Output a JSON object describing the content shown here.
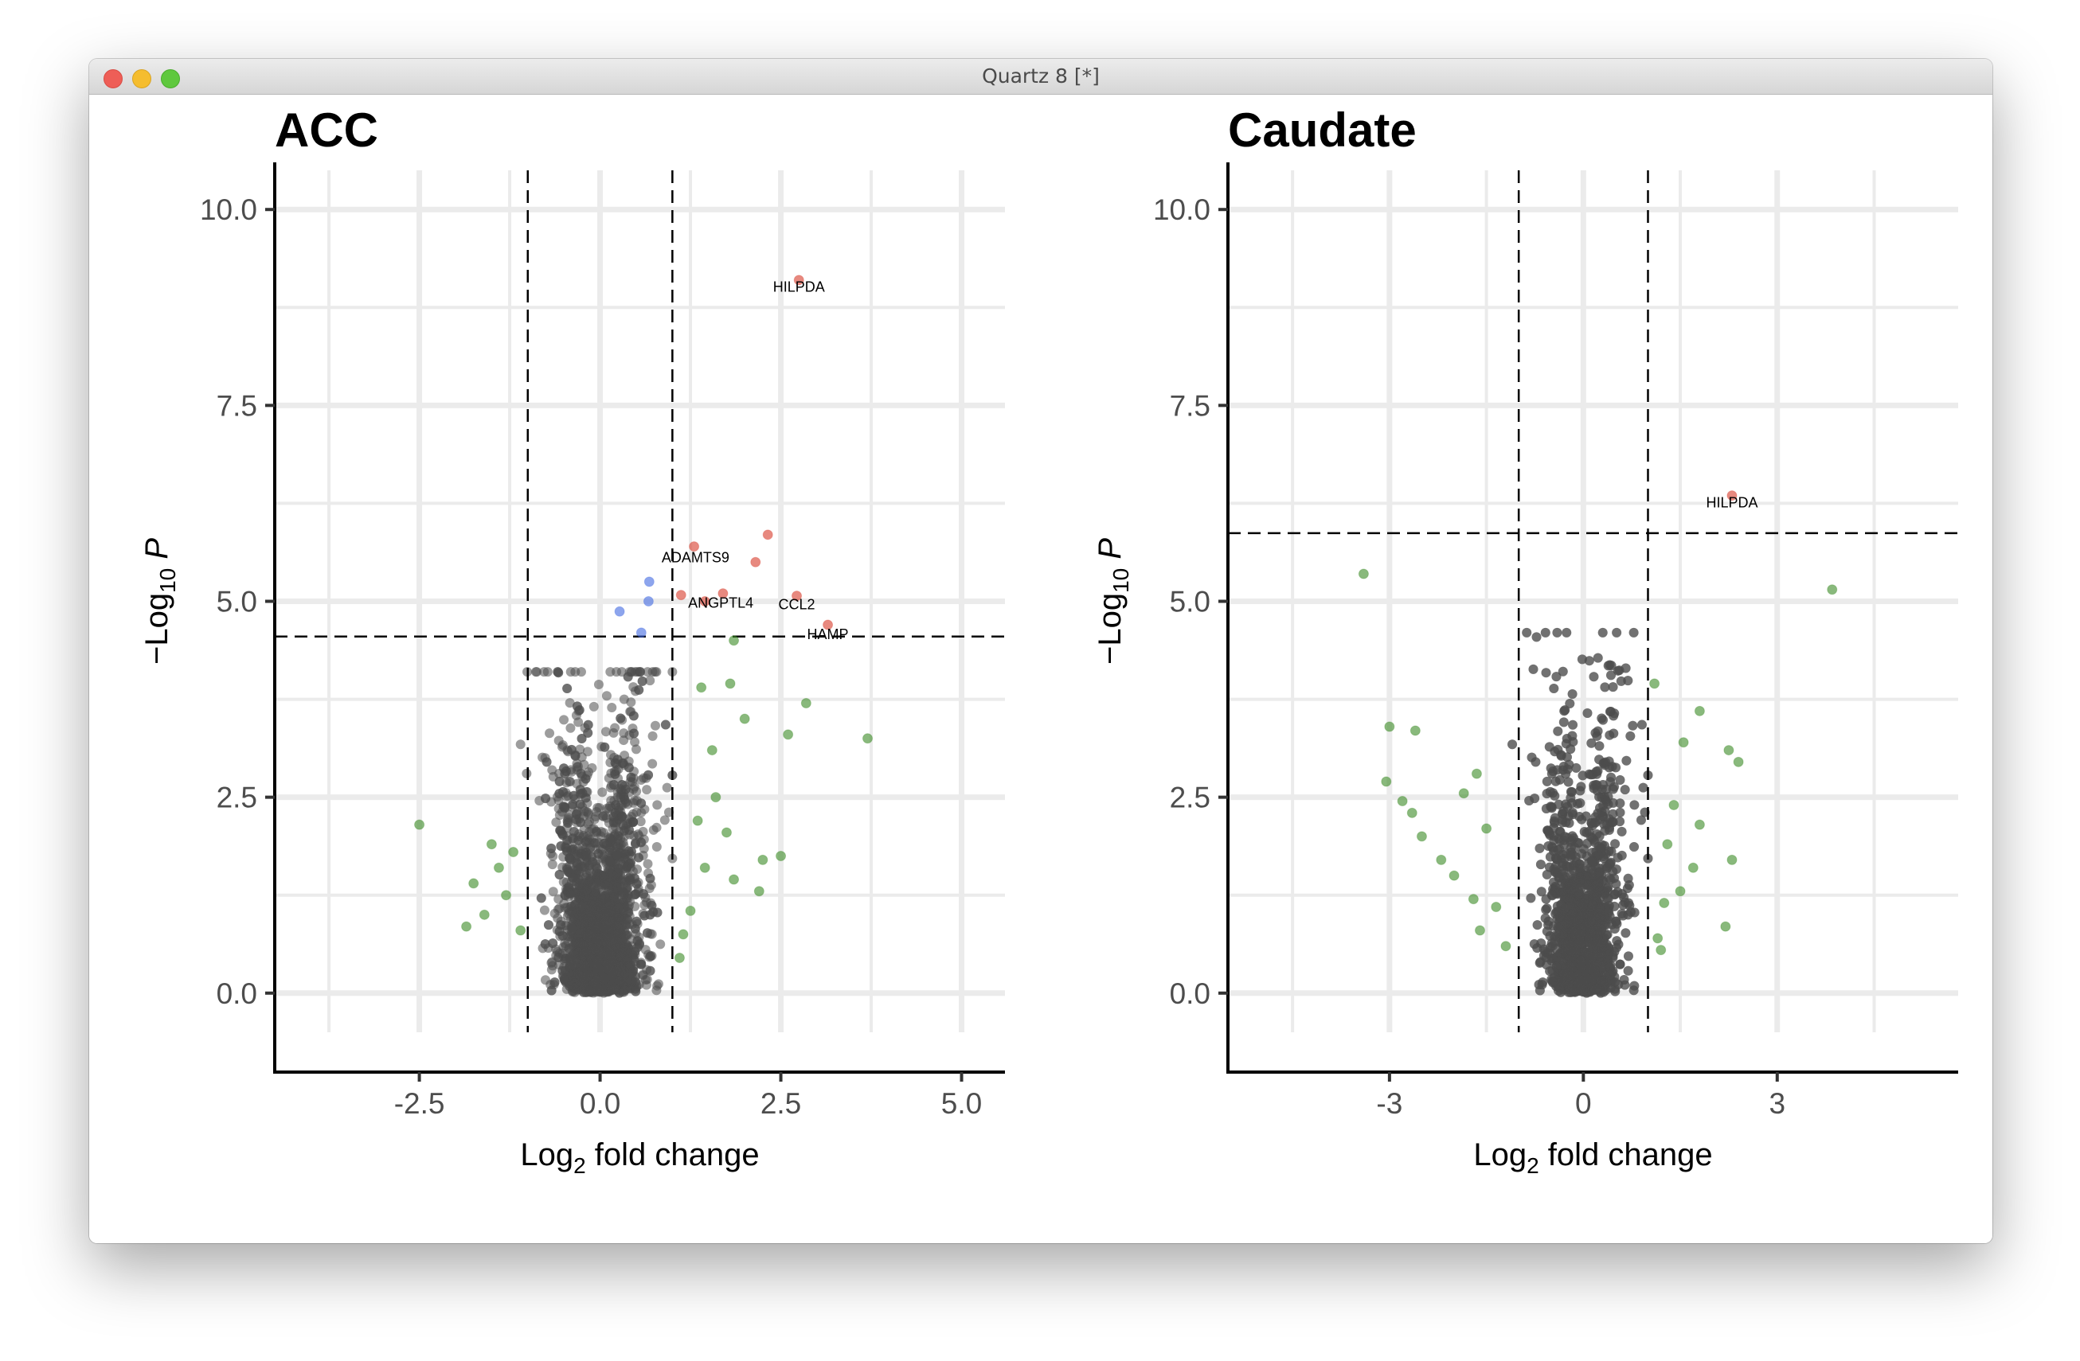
{
  "window": {
    "title": "Quartz 8 [*]"
  },
  "chart_data": [
    {
      "type": "scatter",
      "title": "ACC",
      "xlabel": "Log2 fold change",
      "ylabel": "−Log10 P",
      "xlim": [
        -4.5,
        5.6
      ],
      "ylim": [
        -0.5,
        10.5
      ],
      "x_ticks": [
        -2.5,
        0.0,
        2.5,
        5.0
      ],
      "x_tick_labels": [
        "-2.5",
        "0.0",
        "2.5",
        "5.0"
      ],
      "y_ticks": [
        0,
        2.5,
        5,
        7.5,
        10
      ],
      "y_tick_labels": [
        "0.0",
        "2.5",
        "5.0",
        "7.5",
        "10.0"
      ],
      "grid": true,
      "vlines": [
        -1,
        1
      ],
      "hline": 4.55,
      "colors": {
        "ns": "#4d4d4d",
        "log2fc": "#3a8a25",
        "p": "#4169e1",
        "both": "#d73a2a"
      },
      "dense_cloud": {
        "description": "thousands of non-significant genes",
        "x_range": [
          -1.1,
          1.0
        ],
        "y_range": [
          0,
          4.1
        ]
      },
      "points": [
        {
          "x": 2.75,
          "y": 9.1,
          "group": "both"
        },
        {
          "x": 2.32,
          "y": 5.85,
          "group": "both"
        },
        {
          "x": 1.3,
          "y": 5.7,
          "group": "both"
        },
        {
          "x": 2.15,
          "y": 5.5,
          "group": "both"
        },
        {
          "x": 1.12,
          "y": 5.08,
          "group": "both"
        },
        {
          "x": 1.7,
          "y": 5.1,
          "group": "both"
        },
        {
          "x": 2.72,
          "y": 5.07,
          "group": "both"
        },
        {
          "x": 1.45,
          "y": 5.0,
          "group": "both"
        },
        {
          "x": 3.15,
          "y": 4.7,
          "group": "both"
        },
        {
          "x": 0.68,
          "y": 5.25,
          "group": "p"
        },
        {
          "x": 0.27,
          "y": 4.87,
          "group": "p"
        },
        {
          "x": 0.67,
          "y": 5.0,
          "group": "p"
        },
        {
          "x": 0.57,
          "y": 4.6,
          "group": "p"
        },
        {
          "x": -2.5,
          "y": 2.15,
          "group": "log2fc"
        },
        {
          "x": -1.85,
          "y": 0.85,
          "group": "log2fc"
        },
        {
          "x": -1.6,
          "y": 1.0,
          "group": "log2fc"
        },
        {
          "x": -1.4,
          "y": 1.6,
          "group": "log2fc"
        },
        {
          "x": -1.3,
          "y": 1.25,
          "group": "log2fc"
        },
        {
          "x": -1.2,
          "y": 1.8,
          "group": "log2fc"
        },
        {
          "x": -1.5,
          "y": 1.9,
          "group": "log2fc"
        },
        {
          "x": -1.75,
          "y": 1.4,
          "group": "log2fc"
        },
        {
          "x": -1.1,
          "y": 0.8,
          "group": "log2fc"
        },
        {
          "x": 3.7,
          "y": 3.25,
          "group": "log2fc"
        },
        {
          "x": 2.85,
          "y": 3.7,
          "group": "log2fc"
        },
        {
          "x": 2.6,
          "y": 3.3,
          "group": "log2fc"
        },
        {
          "x": 2.0,
          "y": 3.5,
          "group": "log2fc"
        },
        {
          "x": 1.8,
          "y": 3.95,
          "group": "log2fc"
        },
        {
          "x": 1.85,
          "y": 4.5,
          "group": "log2fc"
        },
        {
          "x": 1.4,
          "y": 3.9,
          "group": "log2fc"
        },
        {
          "x": 2.5,
          "y": 1.75,
          "group": "log2fc"
        },
        {
          "x": 2.25,
          "y": 1.7,
          "group": "log2fc"
        },
        {
          "x": 2.2,
          "y": 1.3,
          "group": "log2fc"
        },
        {
          "x": 1.85,
          "y": 1.45,
          "group": "log2fc"
        },
        {
          "x": 1.75,
          "y": 2.05,
          "group": "log2fc"
        },
        {
          "x": 1.6,
          "y": 2.5,
          "group": "log2fc"
        },
        {
          "x": 1.55,
          "y": 3.1,
          "group": "log2fc"
        },
        {
          "x": 1.35,
          "y": 2.2,
          "group": "log2fc"
        },
        {
          "x": 1.25,
          "y": 1.05,
          "group": "log2fc"
        },
        {
          "x": 1.15,
          "y": 0.75,
          "group": "log2fc"
        },
        {
          "x": 1.45,
          "y": 1.6,
          "group": "log2fc"
        },
        {
          "x": 1.1,
          "y": 0.45,
          "group": "log2fc"
        }
      ],
      "labels": [
        {
          "text": "HILPDA",
          "x": 2.75,
          "y": 8.95
        },
        {
          "text": "ADAMTS9",
          "x": 1.32,
          "y": 5.5
        },
        {
          "text": "ANGPTL4",
          "x": 1.67,
          "y": 4.92
        },
        {
          "text": "CCL2",
          "x": 2.72,
          "y": 4.9
        },
        {
          "text": "HAMP",
          "x": 3.15,
          "y": 4.52
        }
      ]
    },
    {
      "type": "scatter",
      "title": "Caudate",
      "xlabel": "Log2 fold change",
      "ylabel": "−Log10 P",
      "xlim": [
        -5.5,
        5.8
      ],
      "ylim": [
        -0.5,
        10.5
      ],
      "x_ticks": [
        -3,
        0,
        3
      ],
      "x_tick_labels": [
        "-3",
        "0",
        "3"
      ],
      "y_ticks": [
        0,
        2.5,
        5,
        7.5,
        10
      ],
      "y_tick_labels": [
        "0.0",
        "2.5",
        "5.0",
        "7.5",
        "10.0"
      ],
      "grid": true,
      "vlines": [
        -1,
        1
      ],
      "hline": 5.87,
      "colors": {
        "ns": "#4d4d4d",
        "log2fc": "#3a8a25",
        "both": "#d73a2a"
      },
      "dense_cloud": {
        "description": "thousands of non-significant genes",
        "x_range": [
          -1.1,
          1.0
        ],
        "y_range": [
          0,
          4.6
        ]
      },
      "points": [
        {
          "x": 2.3,
          "y": 6.35,
          "group": "both"
        },
        {
          "x": -3.4,
          "y": 5.35,
          "group": "log2fc"
        },
        {
          "x": 3.85,
          "y": 5.15,
          "group": "log2fc"
        },
        {
          "x": -3.0,
          "y": 3.4,
          "group": "log2fc"
        },
        {
          "x": -2.6,
          "y": 3.35,
          "group": "log2fc"
        },
        {
          "x": -3.05,
          "y": 2.7,
          "group": "log2fc"
        },
        {
          "x": -2.8,
          "y": 2.45,
          "group": "log2fc"
        },
        {
          "x": -2.65,
          "y": 2.3,
          "group": "log2fc"
        },
        {
          "x": -2.5,
          "y": 2.0,
          "group": "log2fc"
        },
        {
          "x": -2.2,
          "y": 1.7,
          "group": "log2fc"
        },
        {
          "x": -2.0,
          "y": 1.5,
          "group": "log2fc"
        },
        {
          "x": -1.7,
          "y": 1.2,
          "group": "log2fc"
        },
        {
          "x": -1.6,
          "y": 0.8,
          "group": "log2fc"
        },
        {
          "x": -1.65,
          "y": 2.8,
          "group": "log2fc"
        },
        {
          "x": -1.85,
          "y": 2.55,
          "group": "log2fc"
        },
        {
          "x": -1.5,
          "y": 2.1,
          "group": "log2fc"
        },
        {
          "x": -1.35,
          "y": 1.1,
          "group": "log2fc"
        },
        {
          "x": -1.2,
          "y": 0.6,
          "group": "log2fc"
        },
        {
          "x": 1.1,
          "y": 3.95,
          "group": "log2fc"
        },
        {
          "x": 1.8,
          "y": 3.6,
          "group": "log2fc"
        },
        {
          "x": 1.55,
          "y": 3.2,
          "group": "log2fc"
        },
        {
          "x": 2.25,
          "y": 3.1,
          "group": "log2fc"
        },
        {
          "x": 2.4,
          "y": 2.95,
          "group": "log2fc"
        },
        {
          "x": 1.4,
          "y": 2.4,
          "group": "log2fc"
        },
        {
          "x": 1.8,
          "y": 2.15,
          "group": "log2fc"
        },
        {
          "x": 1.3,
          "y": 1.9,
          "group": "log2fc"
        },
        {
          "x": 2.3,
          "y": 1.7,
          "group": "log2fc"
        },
        {
          "x": 1.7,
          "y": 1.6,
          "group": "log2fc"
        },
        {
          "x": 1.5,
          "y": 1.3,
          "group": "log2fc"
        },
        {
          "x": 1.25,
          "y": 1.15,
          "group": "log2fc"
        },
        {
          "x": 2.2,
          "y": 0.85,
          "group": "log2fc"
        },
        {
          "x": 1.15,
          "y": 0.7,
          "group": "log2fc"
        },
        {
          "x": 1.2,
          "y": 0.55,
          "group": "log2fc"
        }
      ],
      "labels": [
        {
          "text": "HILPDA",
          "x": 2.3,
          "y": 6.2
        }
      ]
    }
  ]
}
